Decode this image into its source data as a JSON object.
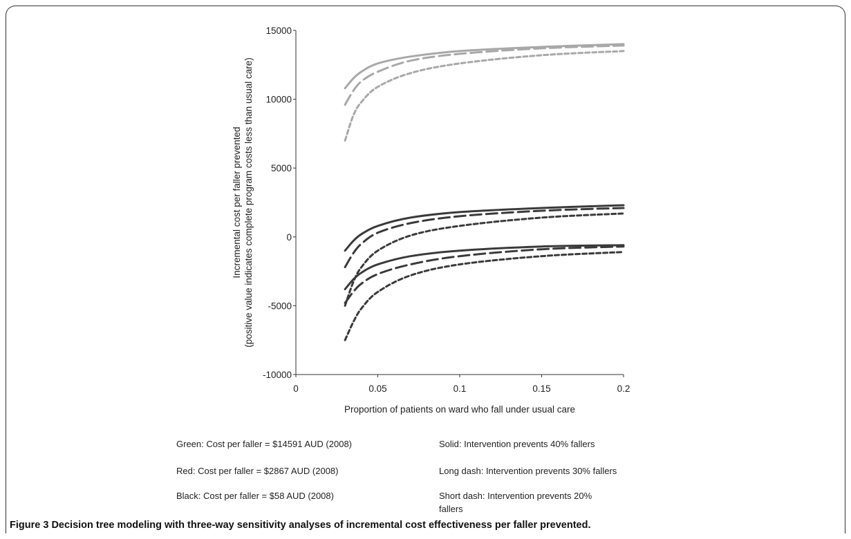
{
  "caption": {
    "label": "Figure 3",
    "text": "Decision tree modeling with three-way sensitivity analyses of incremental cost effectiveness per faller prevented."
  },
  "legend": {
    "colors": [
      "Green: Cost per faller = $14591 AUD (2008)",
      "Red: Cost per faller = $2867 AUD (2008)",
      "Black: Cost per faller = $58 AUD (2008)"
    ],
    "styles": [
      "Solid: Intervention prevents 40% fallers",
      "Long dash: Intervention prevents 30% fallers",
      "Short dash: Intervention prevents 20% fallers"
    ]
  },
  "chart_data": {
    "type": "line",
    "xlabel": "Proportion of patients on ward who fall under usual care",
    "ylabel_line1": "Incremental cost per faller prevented",
    "ylabel_line2": "(positive value indicates complete program costs less than usual care)",
    "xlim": [
      0,
      0.2
    ],
    "ylim": [
      -10000,
      15000
    ],
    "xticks": [
      "0",
      "0.05",
      "0.1",
      "0.15",
      "0.2"
    ],
    "yticks": [
      "-10000",
      "-5000",
      "0",
      "5000",
      "10000",
      "15000"
    ],
    "x": [
      0.03,
      0.035,
      0.04,
      0.05,
      0.07,
      0.1,
      0.15,
      0.2
    ],
    "series": [
      {
        "name": "Green, Solid",
        "color": "#a8a8a8",
        "dash": "solid",
        "values": [
          10800,
          11500,
          12000,
          12600,
          13100,
          13500,
          13800,
          14000
        ]
      },
      {
        "name": "Green, Long dash",
        "color": "#a8a8a8",
        "dash": "long",
        "values": [
          9600,
          10600,
          11300,
          12000,
          12800,
          13300,
          13700,
          13900
        ]
      },
      {
        "name": "Green, Short dash",
        "color": "#a8a8a8",
        "dash": "short",
        "values": [
          7000,
          8800,
          9800,
          10900,
          11900,
          12600,
          13200,
          13500
        ]
      },
      {
        "name": "Red, Solid",
        "color": "#3a3a3a",
        "dash": "solid",
        "values": [
          -1000,
          -300,
          200,
          800,
          1400,
          1800,
          2100,
          2300
        ]
      },
      {
        "name": "Red, Long dash",
        "color": "#3a3a3a",
        "dash": "long",
        "values": [
          -2200,
          -1200,
          -500,
          300,
          1000,
          1500,
          1900,
          2100
        ]
      },
      {
        "name": "Red, Short dash",
        "color": "#3a3a3a",
        "dash": "short",
        "values": [
          -5000,
          -3300,
          -2200,
          -1000,
          100,
          800,
          1400,
          1700
        ]
      },
      {
        "name": "Black, Solid",
        "color": "#3a3a3a",
        "dash": "solid",
        "values": [
          -3800,
          -3100,
          -2600,
          -2000,
          -1400,
          -1000,
          -700,
          -600
        ]
      },
      {
        "name": "Black, Long dash",
        "color": "#3a3a3a",
        "dash": "long",
        "values": [
          -4800,
          -4000,
          -3400,
          -2700,
          -2000,
          -1400,
          -900,
          -700
        ]
      },
      {
        "name": "Black, Short dash",
        "color": "#3a3a3a",
        "dash": "short",
        "values": [
          -7500,
          -6200,
          -5200,
          -4000,
          -2800,
          -2000,
          -1400,
          -1100
        ]
      }
    ]
  }
}
